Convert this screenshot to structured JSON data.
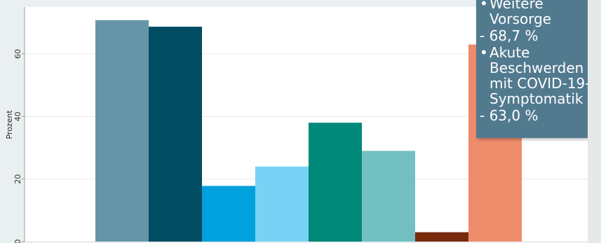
{
  "chart_data": {
    "type": "bar",
    "ylabel": "Prozent",
    "ylim": [
      0,
      75
    ],
    "yticks": [
      0,
      20,
      40,
      60
    ],
    "grid": true,
    "series": [
      {
        "value": 70.8,
        "color": "#6795a8"
      },
      {
        "value": 68.7,
        "color": "#004c63"
      },
      {
        "value": 17.8,
        "color": "#00a1dc"
      },
      {
        "value": 24.0,
        "color": "#78d2f5"
      },
      {
        "value": 38.0,
        "color": "#008878"
      },
      {
        "value": 29.0,
        "color": "#73c0c2"
      },
      {
        "value": 3.0,
        "color": "#782a0d"
      },
      {
        "value": 63.0,
        "color": "#ee8c6c"
      }
    ]
  },
  "tooltip": {
    "items": [
      {
        "bullet": "•",
        "text": "Weitere Vorsorge",
        "value": "- 68,7 %"
      },
      {
        "bullet": "•",
        "text": "Akute Beschwerden\nmit COVID-19-\nSymptomatik",
        "value": "- 63,0 %"
      }
    ]
  }
}
